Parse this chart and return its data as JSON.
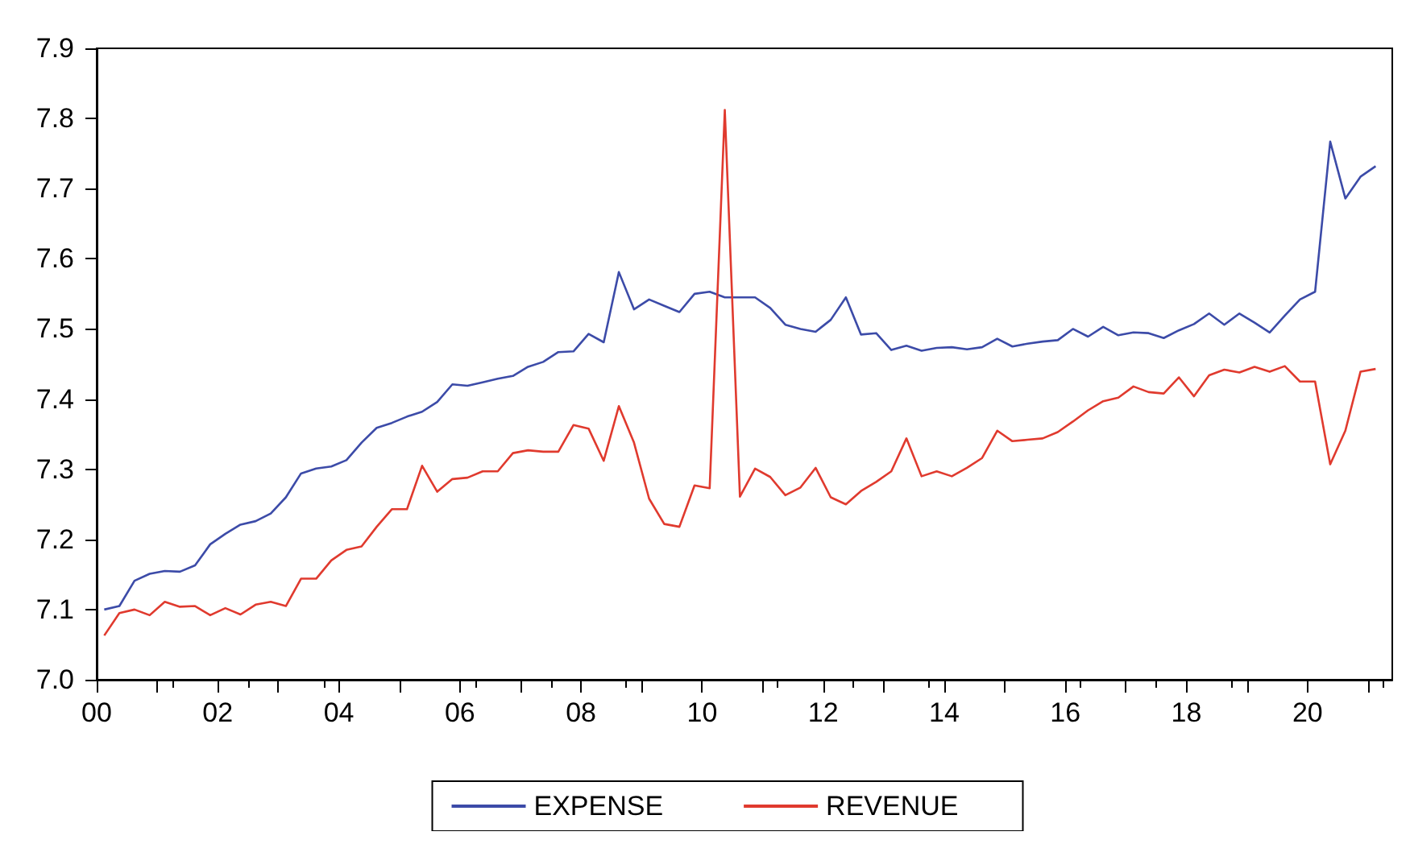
{
  "chart_data": {
    "type": "line",
    "x": [
      2000.125,
      2000.375,
      2000.625,
      2000.875,
      2001.125,
      2001.375,
      2001.625,
      2001.875,
      2002.125,
      2002.375,
      2002.625,
      2002.875,
      2003.125,
      2003.375,
      2003.625,
      2003.875,
      2004.125,
      2004.375,
      2004.625,
      2004.875,
      2005.125,
      2005.375,
      2005.625,
      2005.875,
      2006.125,
      2006.375,
      2006.625,
      2006.875,
      2007.125,
      2007.375,
      2007.625,
      2007.875,
      2008.125,
      2008.375,
      2008.625,
      2008.875,
      2009.125,
      2009.375,
      2009.625,
      2009.875,
      2010.125,
      2010.375,
      2010.625,
      2010.875,
      2011.125,
      2011.375,
      2011.625,
      2011.875,
      2012.125,
      2012.375,
      2012.625,
      2012.875,
      2013.125,
      2013.375,
      2013.625,
      2013.875,
      2014.125,
      2014.375,
      2014.625,
      2014.875,
      2015.125,
      2015.375,
      2015.625,
      2015.875,
      2016.125,
      2016.375,
      2016.625,
      2016.875,
      2017.125,
      2017.375,
      2017.625,
      2017.875,
      2018.125,
      2018.375,
      2018.625,
      2018.875,
      2019.125,
      2019.375,
      2019.625,
      2019.875,
      2020.125,
      2020.375,
      2020.625,
      2020.875,
      2021.125
    ],
    "series": [
      {
        "name": "EXPENSE",
        "color": "#3c4ba8",
        "values": [
          7.1,
          7.105,
          7.141,
          7.151,
          7.155,
          7.154,
          7.163,
          7.193,
          7.208,
          7.221,
          7.226,
          7.237,
          7.26,
          7.294,
          7.301,
          7.304,
          7.313,
          7.338,
          7.359,
          7.366,
          7.375,
          7.382,
          7.396,
          7.421,
          7.419,
          7.424,
          7.429,
          7.433,
          7.446,
          7.453,
          7.467,
          7.468,
          7.493,
          7.481,
          7.581,
          7.528,
          7.542,
          7.533,
          7.524,
          7.55,
          7.553,
          7.545,
          7.545,
          7.545,
          7.53,
          7.506,
          7.5,
          7.496,
          7.513,
          7.545,
          7.492,
          7.494,
          7.47,
          7.476,
          7.469,
          7.473,
          7.474,
          7.471,
          7.474,
          7.486,
          7.475,
          7.479,
          7.482,
          7.484,
          7.5,
          7.489,
          7.503,
          7.491,
          7.495,
          7.494,
          7.487,
          7.498,
          7.507,
          7.522,
          7.506,
          7.522,
          7.509,
          7.495,
          7.519,
          7.542,
          7.553,
          7.767,
          7.686,
          7.717,
          7.732
        ]
      },
      {
        "name": "REVENUE",
        "color": "#e03a2e",
        "values": [
          7.063,
          7.095,
          7.1,
          7.092,
          7.111,
          7.104,
          7.105,
          7.092,
          7.102,
          7.093,
          7.107,
          7.111,
          7.105,
          7.144,
          7.144,
          7.17,
          7.185,
          7.19,
          7.218,
          7.243,
          7.243,
          7.305,
          7.268,
          7.286,
          7.288,
          7.297,
          7.297,
          7.323,
          7.327,
          7.325,
          7.325,
          7.363,
          7.358,
          7.312,
          7.39,
          7.338,
          7.258,
          7.222,
          7.218,
          7.277,
          7.273,
          7.812,
          7.261,
          7.301,
          7.289,
          7.263,
          7.274,
          7.302,
          7.26,
          7.25,
          7.269,
          7.282,
          7.297,
          7.344,
          7.29,
          7.297,
          7.29,
          7.302,
          7.316,
          7.355,
          7.34,
          7.342,
          7.344,
          7.353,
          7.368,
          7.384,
          7.397,
          7.402,
          7.418,
          7.41,
          7.408,
          7.431,
          7.404,
          7.434,
          7.442,
          7.438,
          7.446,
          7.439,
          7.447,
          7.425,
          7.425,
          7.307,
          7.355,
          7.439,
          7.443
        ]
      }
    ],
    "xlim": [
      2000,
      2021.4
    ],
    "xticks": [
      {
        "value": 2000,
        "label": "00"
      },
      {
        "value": 2001,
        "label": null
      },
      {
        "value": 2002,
        "label": "02"
      },
      {
        "value": 2003,
        "label": null
      },
      {
        "value": 2004,
        "label": "04"
      },
      {
        "value": 2005,
        "label": null
      },
      {
        "value": 2006,
        "label": "06"
      },
      {
        "value": 2007,
        "label": null
      },
      {
        "value": 2008,
        "label": "08"
      },
      {
        "value": 2009,
        "label": null
      },
      {
        "value": 2010,
        "label": "10"
      },
      {
        "value": 2011,
        "label": null
      },
      {
        "value": 2012,
        "label": "12"
      },
      {
        "value": 2013,
        "label": null
      },
      {
        "value": 2014,
        "label": "14"
      },
      {
        "value": 2015,
        "label": null
      },
      {
        "value": 2016,
        "label": "16"
      },
      {
        "value": 2017,
        "label": null
      },
      {
        "value": 2018,
        "label": "18"
      },
      {
        "value": 2019,
        "label": null
      },
      {
        "value": 2020,
        "label": "20"
      },
      {
        "value": 2021,
        "label": null
      }
    ],
    "ylim": [
      7.0,
      7.9
    ],
    "yticks": [
      {
        "value": 7.0,
        "label": "7.0"
      },
      {
        "value": 7.1,
        "label": "7.1"
      },
      {
        "value": 7.2,
        "label": "7.2"
      },
      {
        "value": 7.3,
        "label": "7.3"
      },
      {
        "value": 7.4,
        "label": "7.4"
      },
      {
        "value": 7.5,
        "label": "7.5"
      },
      {
        "value": 7.6,
        "label": "7.6"
      },
      {
        "value": 7.7,
        "label": "7.7"
      },
      {
        "value": 7.8,
        "label": "7.8"
      },
      {
        "value": 7.9,
        "label": "7.9"
      }
    ],
    "grid": false,
    "legend": "bottom",
    "marker": "none",
    "line_style": "solid"
  }
}
